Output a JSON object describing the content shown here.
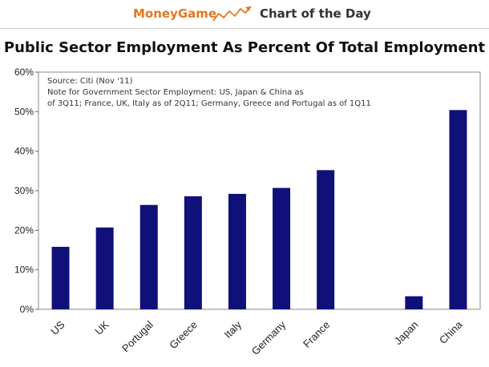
{
  "banner": {
    "brand": "MoneyGame",
    "title": "Chart of the Day",
    "colors": {
      "brand": "#e8761f",
      "trend": "#e8761f"
    }
  },
  "chart_data": {
    "type": "bar",
    "title": "Public Sector Employment As Percent Of Total Employment",
    "notes": [
      "Source: Citi (Nov '11)",
      "Note for Government Sector Employment: US, Japan & China as",
      "of 3Q11; France, UK, Italy as of 2Q11; Germany, Greece and Portugal as of 1Q11"
    ],
    "categories": [
      "US",
      "UK",
      "Portugal",
      "Greece",
      "Italy",
      "Germany",
      "France",
      "",
      "Japan",
      "China"
    ],
    "values": [
      15.8,
      20.7,
      26.4,
      28.6,
      29.2,
      30.7,
      35.2,
      null,
      3.3,
      50.4
    ],
    "ylim": [
      0,
      60
    ],
    "yticks": [
      0,
      10,
      20,
      30,
      40,
      50,
      60
    ],
    "ytick_labels": [
      "0%",
      "10%",
      "20%",
      "30%",
      "40%",
      "50%",
      "60%"
    ],
    "xlabel": "",
    "ylabel": "",
    "grid": false,
    "bar_color": "#10107a"
  }
}
